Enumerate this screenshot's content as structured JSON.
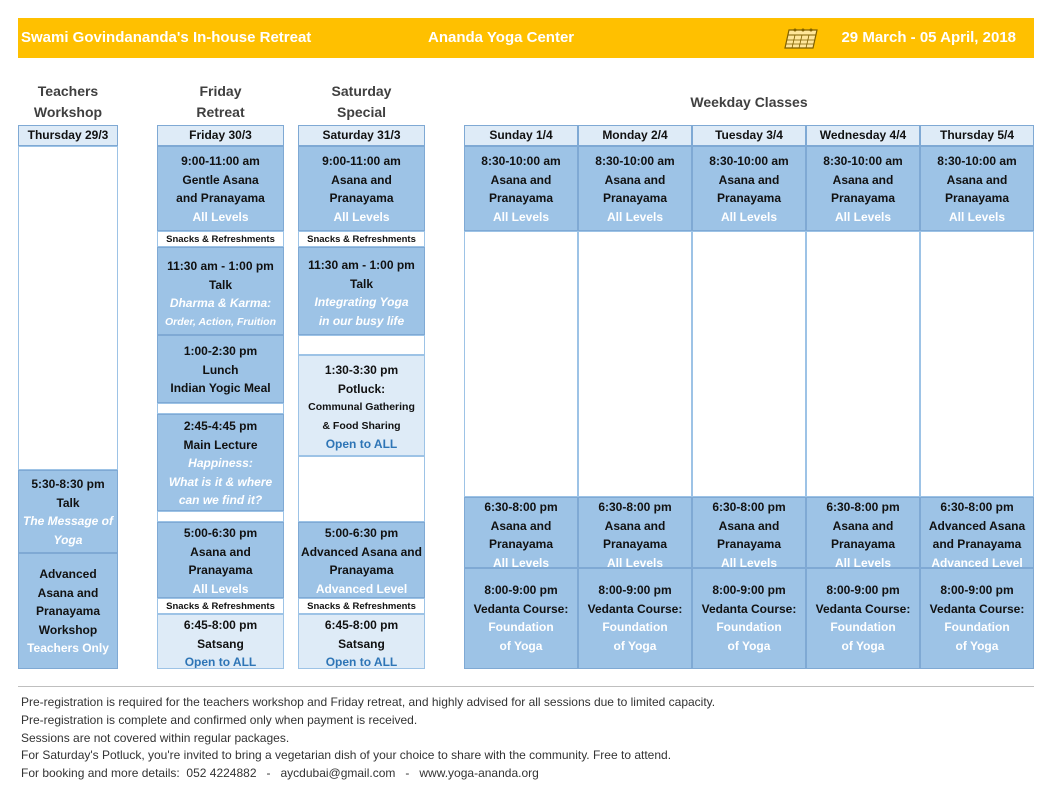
{
  "banner": {
    "left": "Swami Govindananda's In-house Retreat",
    "center": "Ananda Yoga Center",
    "right": "29 March - 05 April, 2018",
    "icon": "calendar-icon",
    "color": "#ffc000"
  },
  "headers": {
    "teachers_l1": "Teachers",
    "teachers_l2": "Workshop",
    "friday_l1": "Friday",
    "friday_l2": "Retreat",
    "saturday_l1": "Saturday",
    "saturday_l2": "Special",
    "weekday": "Weekday Classes"
  },
  "dates": {
    "thu": "Thursday 29/3",
    "fri": "Friday 30/3",
    "sat": "Saturday 31/3",
    "sun": "Sunday 1/4",
    "mon": "Monday 2/4",
    "tue": "Tuesday 3/4",
    "wed": "Wednesday 4/4",
    "thu2": "Thursday 5/4"
  },
  "thursday": {
    "talk": {
      "time": "5:30-8:30 pm",
      "title": "Talk",
      "sub1": "The Message of",
      "sub2": "Yoga"
    },
    "workshop": {
      "l1": "Advanced",
      "l2": "Asana and",
      "l3": "Pranayama",
      "l4": "Workshop",
      "note": "Teachers Only"
    }
  },
  "friday": {
    "asana": {
      "time": "9:00-11:00 am",
      "l1": "Gentle Asana",
      "l2": "and Pranayama",
      "level": "All Levels"
    },
    "snacks1": "Snacks & Refreshments",
    "talk": {
      "time": "11:30 am - 1:00 pm",
      "title": "Talk",
      "sub1": "Dharma & Karma:",
      "sub2": "Order, Action, Fruition"
    },
    "lunch": {
      "time": "1:00-2:30 pm",
      "l1": "Lunch",
      "l2": "Indian Yogic Meal"
    },
    "lecture": {
      "time": "2:45-4:45 pm",
      "title": "Main Lecture",
      "sub1": "Happiness:",
      "sub2": "What is it & where",
      "sub3": "can we find it?"
    },
    "asana2": {
      "time": "5:00-6:30 pm",
      "l1": "Asana and",
      "l2": "Pranayama",
      "level": "All Levels"
    },
    "snacks2": "Snacks & Refreshments",
    "satsang": {
      "time": "6:45-8:00 pm",
      "title": "Satsang",
      "note": "Open to ALL"
    }
  },
  "saturday": {
    "asana": {
      "time": "9:00-11:00 am",
      "l1": "Asana and",
      "l2": "Pranayama",
      "level": "All Levels"
    },
    "snacks1": "Snacks & Refreshments",
    "talk": {
      "time": "11:30 am - 1:00 pm",
      "title": "Talk",
      "sub1": "Integrating Yoga",
      "sub2": "in our busy life"
    },
    "potluck": {
      "time": "1:30-3:30 pm",
      "title": "Potluck:",
      "sub1": "Communal Gathering",
      "sub2": "& Food Sharing",
      "note": "Open to ALL"
    },
    "asana2": {
      "time": "5:00-6:30 pm",
      "l1": "Advanced Asana and",
      "l2": "Pranayama",
      "level": "Advanced Level"
    },
    "snacks2": "Snacks & Refreshments",
    "satsang": {
      "time": "6:45-8:00 pm",
      "title": "Satsang",
      "note": "Open to ALL"
    }
  },
  "weekday": {
    "morning": {
      "time": "8:30-10:00 am",
      "l1": "Asana and",
      "l2": "Pranayama",
      "level": "All Levels"
    },
    "evening": {
      "time": "6:30-8:00 pm",
      "l1": "Asana and",
      "l2": "Pranayama",
      "level": "All Levels"
    },
    "evening_thu": {
      "time": "6:30-8:00 pm",
      "l1": "Advanced Asana",
      "l2": "and Pranayama",
      "level": "Advanced Level"
    },
    "vedanta": {
      "time": "8:00-9:00 pm",
      "title": "Vedanta Course:",
      "sub1": "Foundation",
      "sub2": "of Yoga"
    }
  },
  "notes": [
    "Pre-registration is required for the teachers workshop and Friday retreat, and highly advised for all sessions due to limited capacity.",
    "Pre-registration is complete and confirmed only when payment is received.",
    "Sessions are not covered within regular packages.",
    "For Saturday's Potluck, you're invited to bring a vegetarian dish of your choice to share with the community. Free to attend.",
    "For booking and more details:  052 4224882   -   aycdubai@gmail.com   -   www.yoga-ananda.org"
  ],
  "colors": {
    "dark_cell": "#9dc3e6",
    "light_cell": "#deebf7",
    "accent_blue": "#2e75b6"
  }
}
